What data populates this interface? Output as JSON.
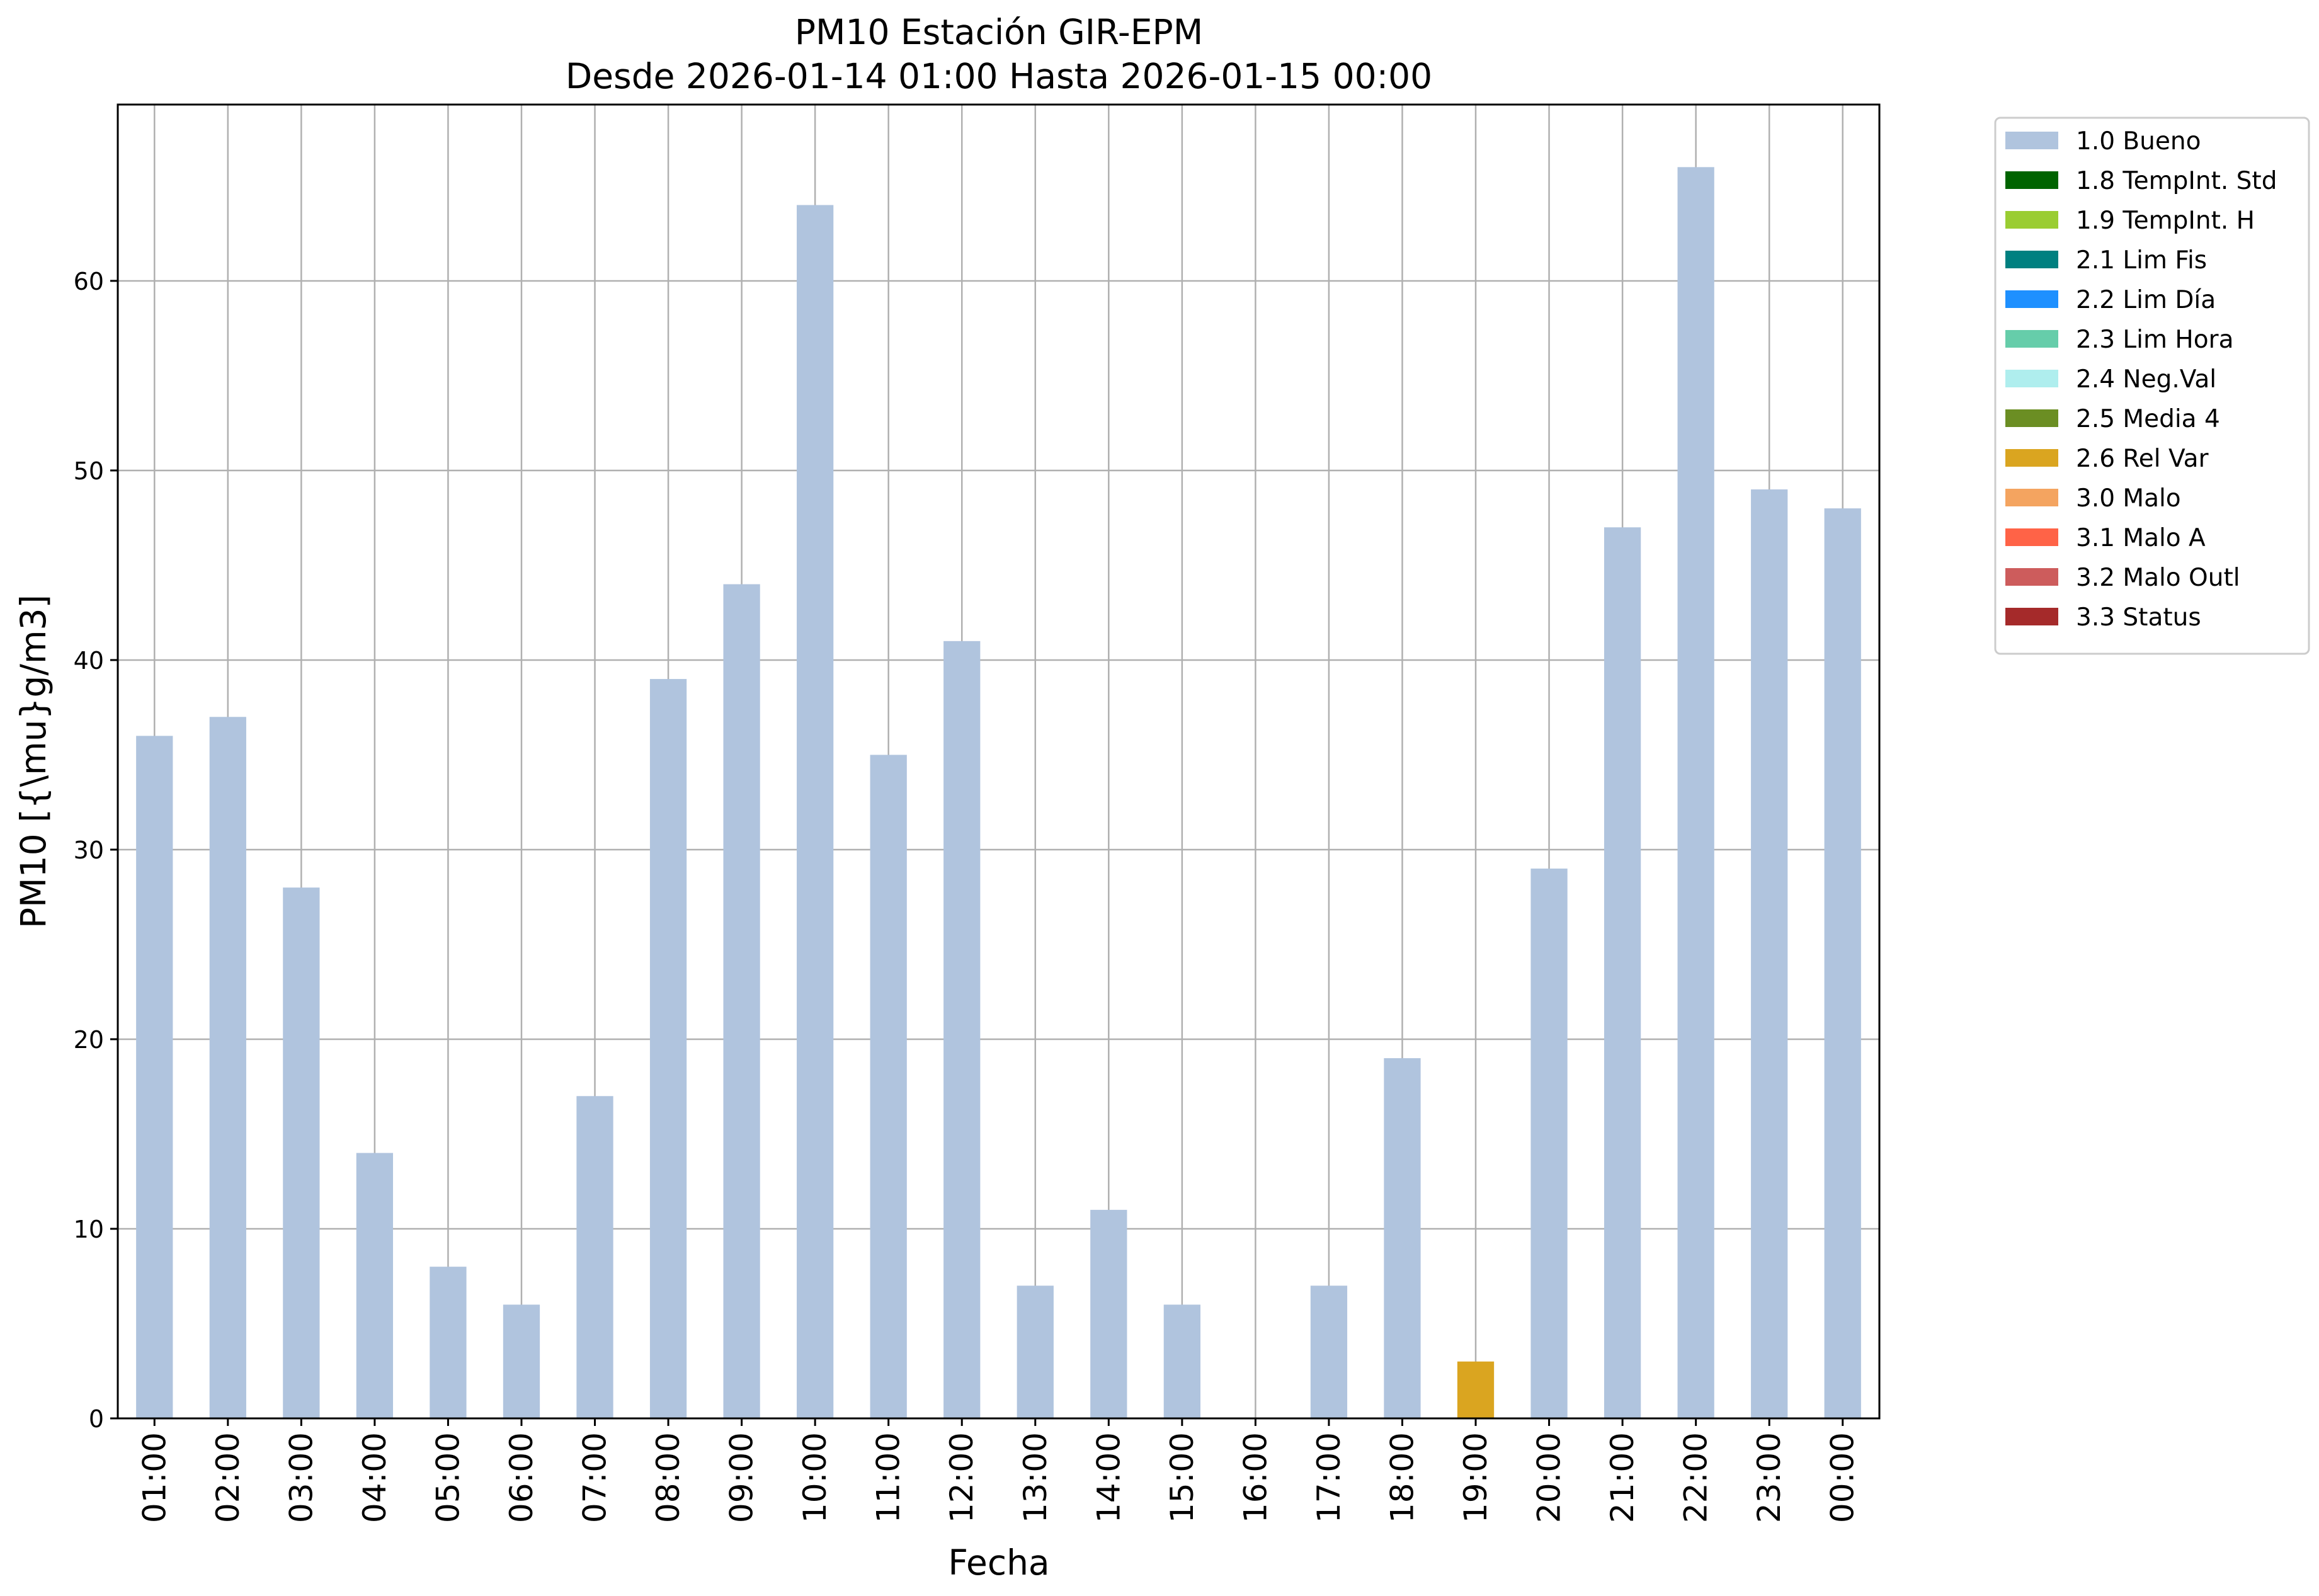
{
  "chart_data": {
    "type": "bar",
    "title": "PM10 Estación GIR-EPM",
    "subtitle": "Desde 2026-01-14 01:00 Hasta 2026-01-15 00:00",
    "xlabel": "Fecha",
    "ylabel": "PM10 [{\\mu}g/m3]",
    "ylim": [
      0,
      69.3
    ],
    "yticks": [
      0,
      10,
      20,
      30,
      40,
      50,
      60
    ],
    "grid": true,
    "legend_position": "outside-right",
    "categories": [
      "01:00",
      "02:00",
      "03:00",
      "04:00",
      "05:00",
      "06:00",
      "07:00",
      "08:00",
      "09:00",
      "10:00",
      "11:00",
      "12:00",
      "13:00",
      "14:00",
      "15:00",
      "16:00",
      "17:00",
      "18:00",
      "19:00",
      "20:00",
      "21:00",
      "22:00",
      "23:00",
      "00:00"
    ],
    "series": [
      {
        "name": "1.0 Bueno",
        "color": "#b0c4de",
        "values": [
          36,
          37,
          28,
          14,
          8,
          6,
          17,
          39,
          44,
          64,
          35,
          41,
          7,
          11,
          6,
          0,
          7,
          19,
          0,
          29,
          47,
          66,
          49,
          48
        ]
      },
      {
        "name": "1.8 TempInt. Std",
        "color": "#006400",
        "values": [
          0,
          0,
          0,
          0,
          0,
          0,
          0,
          0,
          0,
          0,
          0,
          0,
          0,
          0,
          0,
          0,
          0,
          0,
          0,
          0,
          0,
          0,
          0,
          0
        ]
      },
      {
        "name": "1.9 TempInt. H",
        "color": "#9acd32",
        "values": [
          0,
          0,
          0,
          0,
          0,
          0,
          0,
          0,
          0,
          0,
          0,
          0,
          0,
          0,
          0,
          0,
          0,
          0,
          0,
          0,
          0,
          0,
          0,
          0
        ]
      },
      {
        "name": "2.1 Lim Fis",
        "color": "#008080",
        "values": [
          0,
          0,
          0,
          0,
          0,
          0,
          0,
          0,
          0,
          0,
          0,
          0,
          0,
          0,
          0,
          0,
          0,
          0,
          0,
          0,
          0,
          0,
          0,
          0
        ]
      },
      {
        "name": "2.2 Lim Día",
        "color": "#1e90ff",
        "values": [
          0,
          0,
          0,
          0,
          0,
          0,
          0,
          0,
          0,
          0,
          0,
          0,
          0,
          0,
          0,
          0,
          0,
          0,
          0,
          0,
          0,
          0,
          0,
          0
        ]
      },
      {
        "name": "2.3 Lim Hora",
        "color": "#66cdaa",
        "values": [
          0,
          0,
          0,
          0,
          0,
          0,
          0,
          0,
          0,
          0,
          0,
          0,
          0,
          0,
          0,
          0,
          0,
          0,
          0,
          0,
          0,
          0,
          0,
          0
        ]
      },
      {
        "name": "2.4 Neg.Val",
        "color": "#afeeee",
        "values": [
          0,
          0,
          0,
          0,
          0,
          0,
          0,
          0,
          0,
          0,
          0,
          0,
          0,
          0,
          0,
          0,
          0,
          0,
          0,
          0,
          0,
          0,
          0,
          0
        ]
      },
      {
        "name": "2.5 Media 4",
        "color": "#6b8e23",
        "values": [
          0,
          0,
          0,
          0,
          0,
          0,
          0,
          0,
          0,
          0,
          0,
          0,
          0,
          0,
          0,
          0,
          0,
          0,
          0,
          0,
          0,
          0,
          0,
          0
        ]
      },
      {
        "name": "2.6 Rel Var",
        "color": "#daa520",
        "values": [
          0,
          0,
          0,
          0,
          0,
          0,
          0,
          0,
          0,
          0,
          0,
          0,
          0,
          0,
          0,
          0,
          0,
          0,
          3,
          0,
          0,
          0,
          0,
          0
        ]
      },
      {
        "name": "3.0 Malo",
        "color": "#f4a460",
        "values": [
          0,
          0,
          0,
          0,
          0,
          0,
          0,
          0,
          0,
          0,
          0,
          0,
          0,
          0,
          0,
          0,
          0,
          0,
          0,
          0,
          0,
          0,
          0,
          0
        ]
      },
      {
        "name": "3.1 Malo A",
        "color": "#ff6347",
        "values": [
          0,
          0,
          0,
          0,
          0,
          0,
          0,
          0,
          0,
          0,
          0,
          0,
          0,
          0,
          0,
          0,
          0,
          0,
          0,
          0,
          0,
          0,
          0,
          0
        ]
      },
      {
        "name": "3.2 Malo Outl",
        "color": "#cd5c5c",
        "values": [
          0,
          0,
          0,
          0,
          0,
          0,
          0,
          0,
          0,
          0,
          0,
          0,
          0,
          0,
          0,
          0,
          0,
          0,
          0,
          0,
          0,
          0,
          0,
          0
        ]
      },
      {
        "name": "3.3 Status",
        "color": "#a52a2a",
        "values": [
          0,
          0,
          0,
          0,
          0,
          0,
          0,
          0,
          0,
          0,
          0,
          0,
          0,
          0,
          0,
          0,
          0,
          0,
          0,
          0,
          0,
          0,
          0,
          0
        ]
      }
    ]
  }
}
